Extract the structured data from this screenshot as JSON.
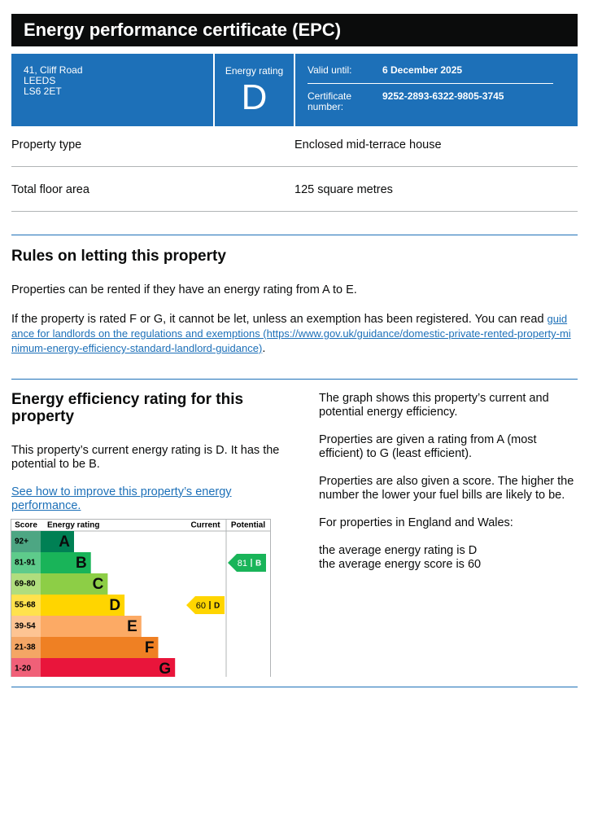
{
  "header": {
    "title": "Energy performance certificate (EPC)"
  },
  "summary": {
    "address": [
      "41, Cliff Road",
      "LEEDS",
      "LS6 2ET"
    ],
    "energy_rating_label": "Energy rating",
    "energy_rating": "D",
    "valid_until_label": "Valid until:",
    "valid_until": "6 December 2025",
    "certificate_number_label": "Certificate number:",
    "certificate_number": "9252-2893-6322-9805-3745"
  },
  "property": {
    "rows": [
      [
        "Property type",
        "Enclosed mid-terrace house"
      ],
      [
        "Total floor area",
        "125 square metres"
      ]
    ]
  },
  "rules": {
    "heading": "Rules on letting this property",
    "paragraph_1": "Properties can be rented if they have an energy rating from A to E.",
    "paragraph_2": "If the property is rated F or G, it cannot be let, unless an exemption has been registered. You can read ",
    "link": "guidance for landlords on the regulations and exemptions (https://www.gov.uk/guidance/domestic-private-rented-property-minimum-energy-efficiency-standard-landlord-guidance)",
    "paragraph_2_end": "."
  },
  "efficiency": {
    "heading": "Energy efficiency rating for this property",
    "intro": "This property’s current energy rating is D. It has the potential to be B.",
    "link": "See how to improve this property’s energy performance.",
    "chart": {
      "headers": [
        "Score",
        "Energy rating",
        "Current",
        "Potential"
      ],
      "bands": [
        {
          "score": "92+",
          "letter": "A",
          "color": "#008054",
          "score_color": "#4da683"
        },
        {
          "score": "81-91",
          "letter": "B",
          "color": "#19b459",
          "score_color": "#5ecb8b"
        },
        {
          "score": "69-80",
          "letter": "C",
          "color": "#8dce46",
          "score_color": "#b0dd7e"
        },
        {
          "score": "55-68",
          "letter": "D",
          "color": "#ffd500",
          "score_color": "#ffe24d"
        },
        {
          "score": "39-54",
          "letter": "E",
          "color": "#fcaa65",
          "score_color": "#fdc493"
        },
        {
          "score": "21-38",
          "letter": "F",
          "color": "#ef8023",
          "score_color": "#f4a665"
        },
        {
          "score": "1-20",
          "letter": "G",
          "color": "#e9153b",
          "score_color": "#f06078"
        }
      ],
      "current": {
        "score": 60,
        "letter": "D"
      },
      "potential": {
        "score": 81,
        "letter": "B"
      }
    },
    "notes": [
      "The graph shows this property’s current and potential energy efficiency.",
      "Properties are given a rating from A (most efficient) to G (least efficient).",
      "Properties are also given a score. The higher the number the lower your fuel bills are likely to be.",
      "For properties in England and Wales:"
    ],
    "averages": [
      "the average energy rating is D",
      "the average energy score is 60"
    ]
  }
}
